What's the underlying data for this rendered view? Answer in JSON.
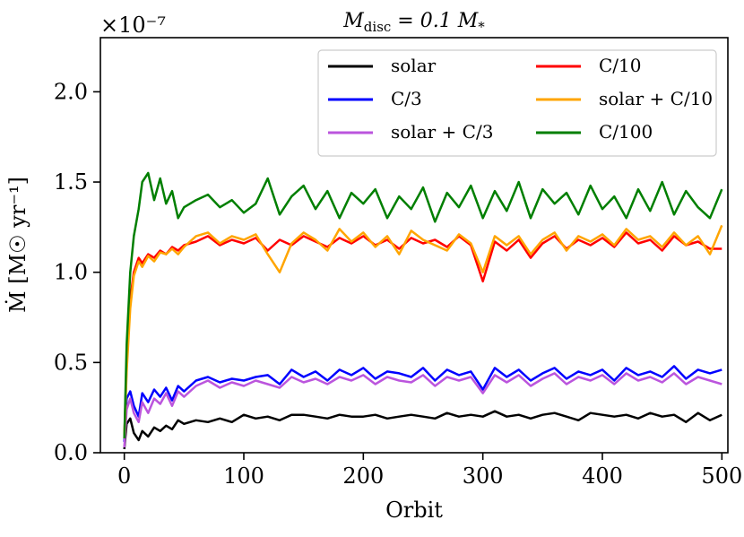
{
  "chart_data": {
    "type": "line",
    "title": "M_disc = 0.1 M_*",
    "title_parts": {
      "main": "M",
      "sub": "disc",
      "eq": " = 0.1 M",
      "star": "*"
    },
    "xlabel": "Orbit",
    "ylabel": "Ṁ [M☉ yr⁻¹]",
    "y_offset_text": "×10⁻⁷",
    "xlim": [
      -20,
      505
    ],
    "ylim": [
      0,
      2.3
    ],
    "x_ticks": [
      0,
      100,
      200,
      300,
      400,
      500
    ],
    "x_tick_labels": [
      "0",
      "100",
      "200",
      "300",
      "400",
      "500"
    ],
    "y_ticks": [
      0.0,
      0.5,
      1.0,
      1.5,
      2.0
    ],
    "y_tick_labels": [
      "0.0",
      "0.5",
      "1.0",
      "1.5",
      "2.0"
    ],
    "legend_position": "upper-right",
    "series": [
      {
        "name": "solar",
        "color": "#000000",
        "x": [
          0,
          2,
          5,
          8,
          12,
          15,
          20,
          25,
          30,
          35,
          40,
          45,
          50,
          60,
          70,
          80,
          90,
          100,
          110,
          120,
          130,
          140,
          150,
          160,
          170,
          180,
          190,
          200,
          210,
          220,
          230,
          240,
          250,
          260,
          270,
          280,
          290,
          300,
          310,
          320,
          330,
          340,
          350,
          360,
          370,
          380,
          390,
          400,
          410,
          420,
          430,
          440,
          450,
          460,
          470,
          480,
          490,
          500
        ],
        "values": [
          0.02,
          0.16,
          0.19,
          0.11,
          0.07,
          0.12,
          0.09,
          0.14,
          0.12,
          0.15,
          0.13,
          0.18,
          0.16,
          0.18,
          0.17,
          0.19,
          0.17,
          0.21,
          0.19,
          0.2,
          0.18,
          0.21,
          0.21,
          0.2,
          0.19,
          0.21,
          0.2,
          0.2,
          0.21,
          0.19,
          0.2,
          0.21,
          0.2,
          0.19,
          0.22,
          0.2,
          0.21,
          0.2,
          0.23,
          0.2,
          0.21,
          0.19,
          0.21,
          0.22,
          0.2,
          0.18,
          0.22,
          0.21,
          0.2,
          0.21,
          0.19,
          0.22,
          0.2,
          0.21,
          0.17,
          0.22,
          0.18,
          0.21
        ]
      },
      {
        "name": "C/3",
        "color": "#0000ff",
        "x": [
          0,
          2,
          5,
          8,
          12,
          15,
          20,
          25,
          30,
          35,
          40,
          45,
          50,
          60,
          70,
          80,
          90,
          100,
          110,
          120,
          130,
          140,
          150,
          160,
          170,
          180,
          190,
          200,
          210,
          220,
          230,
          240,
          250,
          260,
          270,
          280,
          290,
          300,
          310,
          320,
          330,
          340,
          350,
          360,
          370,
          380,
          390,
          400,
          410,
          420,
          430,
          440,
          450,
          460,
          470,
          480,
          490,
          500
        ],
        "values": [
          0.06,
          0.3,
          0.34,
          0.26,
          0.2,
          0.33,
          0.28,
          0.35,
          0.31,
          0.36,
          0.29,
          0.37,
          0.34,
          0.4,
          0.42,
          0.39,
          0.41,
          0.4,
          0.42,
          0.43,
          0.38,
          0.46,
          0.42,
          0.45,
          0.4,
          0.46,
          0.43,
          0.47,
          0.41,
          0.45,
          0.44,
          0.42,
          0.47,
          0.4,
          0.46,
          0.43,
          0.45,
          0.35,
          0.47,
          0.42,
          0.46,
          0.4,
          0.44,
          0.47,
          0.41,
          0.45,
          0.43,
          0.46,
          0.4,
          0.47,
          0.43,
          0.45,
          0.42,
          0.48,
          0.41,
          0.46,
          0.44,
          0.46
        ]
      },
      {
        "name": "solar + C/3",
        "color": "#bb55dd",
        "x": [
          0,
          2,
          5,
          8,
          12,
          15,
          20,
          25,
          30,
          35,
          40,
          45,
          50,
          60,
          70,
          80,
          90,
          100,
          110,
          120,
          130,
          140,
          150,
          160,
          170,
          180,
          190,
          200,
          210,
          220,
          230,
          240,
          250,
          260,
          270,
          280,
          290,
          300,
          310,
          320,
          330,
          340,
          350,
          360,
          370,
          380,
          390,
          400,
          410,
          420,
          430,
          440,
          450,
          460,
          470,
          480,
          490,
          500
        ],
        "values": [
          0.03,
          0.24,
          0.3,
          0.22,
          0.17,
          0.28,
          0.22,
          0.3,
          0.27,
          0.33,
          0.26,
          0.34,
          0.31,
          0.37,
          0.4,
          0.36,
          0.39,
          0.37,
          0.4,
          0.38,
          0.36,
          0.42,
          0.39,
          0.41,
          0.38,
          0.42,
          0.4,
          0.43,
          0.38,
          0.42,
          0.4,
          0.39,
          0.43,
          0.37,
          0.42,
          0.4,
          0.42,
          0.33,
          0.43,
          0.39,
          0.43,
          0.37,
          0.41,
          0.44,
          0.38,
          0.42,
          0.4,
          0.43,
          0.38,
          0.44,
          0.4,
          0.42,
          0.39,
          0.44,
          0.38,
          0.42,
          0.4,
          0.38
        ]
      },
      {
        "name": "C/10",
        "color": "#ff0000",
        "x": [
          0,
          2,
          5,
          8,
          12,
          15,
          20,
          25,
          30,
          35,
          40,
          45,
          50,
          60,
          70,
          80,
          90,
          100,
          110,
          120,
          130,
          140,
          150,
          160,
          170,
          180,
          190,
          200,
          210,
          220,
          230,
          240,
          250,
          260,
          270,
          280,
          290,
          300,
          310,
          320,
          330,
          340,
          350,
          360,
          370,
          380,
          390,
          400,
          410,
          420,
          430,
          440,
          450,
          460,
          470,
          480,
          490,
          500
        ],
        "values": [
          0.08,
          0.5,
          0.85,
          1.0,
          1.08,
          1.05,
          1.1,
          1.08,
          1.12,
          1.1,
          1.14,
          1.12,
          1.15,
          1.17,
          1.2,
          1.15,
          1.18,
          1.16,
          1.19,
          1.12,
          1.18,
          1.15,
          1.2,
          1.17,
          1.14,
          1.19,
          1.16,
          1.2,
          1.15,
          1.18,
          1.13,
          1.19,
          1.16,
          1.18,
          1.14,
          1.2,
          1.15,
          0.95,
          1.17,
          1.12,
          1.18,
          1.08,
          1.16,
          1.2,
          1.13,
          1.18,
          1.15,
          1.19,
          1.14,
          1.22,
          1.16,
          1.18,
          1.12,
          1.2,
          1.15,
          1.17,
          1.13,
          1.13
        ]
      },
      {
        "name": "solar + C/10",
        "color": "#ffa500",
        "x": [
          0,
          2,
          5,
          8,
          12,
          15,
          20,
          25,
          30,
          35,
          40,
          45,
          50,
          60,
          70,
          80,
          90,
          100,
          110,
          120,
          130,
          140,
          150,
          160,
          170,
          180,
          190,
          200,
          210,
          220,
          230,
          240,
          250,
          260,
          270,
          280,
          290,
          300,
          310,
          320,
          330,
          340,
          350,
          360,
          370,
          380,
          390,
          400,
          410,
          420,
          430,
          440,
          450,
          460,
          470,
          480,
          490,
          500
        ],
        "values": [
          0.08,
          0.45,
          0.8,
          0.98,
          1.06,
          1.03,
          1.09,
          1.06,
          1.11,
          1.1,
          1.13,
          1.1,
          1.14,
          1.2,
          1.22,
          1.16,
          1.2,
          1.18,
          1.21,
          1.1,
          1.0,
          1.16,
          1.22,
          1.18,
          1.12,
          1.24,
          1.17,
          1.22,
          1.14,
          1.2,
          1.1,
          1.23,
          1.18,
          1.15,
          1.12,
          1.21,
          1.16,
          1.0,
          1.2,
          1.15,
          1.2,
          1.1,
          1.18,
          1.22,
          1.12,
          1.2,
          1.17,
          1.21,
          1.15,
          1.24,
          1.18,
          1.2,
          1.14,
          1.22,
          1.15,
          1.2,
          1.1,
          1.26
        ]
      },
      {
        "name": "C/100",
        "color": "#007f00",
        "x": [
          0,
          2,
          5,
          8,
          12,
          15,
          20,
          25,
          30,
          35,
          40,
          45,
          50,
          60,
          70,
          80,
          90,
          100,
          110,
          120,
          130,
          140,
          150,
          160,
          170,
          180,
          190,
          200,
          210,
          220,
          230,
          240,
          250,
          260,
          270,
          280,
          290,
          300,
          310,
          320,
          330,
          340,
          350,
          360,
          370,
          380,
          390,
          400,
          410,
          420,
          430,
          440,
          450,
          460,
          470,
          480,
          490,
          500
        ],
        "values": [
          0.08,
          0.6,
          1.0,
          1.2,
          1.35,
          1.5,
          1.55,
          1.4,
          1.52,
          1.38,
          1.45,
          1.3,
          1.36,
          1.4,
          1.43,
          1.36,
          1.4,
          1.33,
          1.38,
          1.52,
          1.32,
          1.42,
          1.48,
          1.35,
          1.45,
          1.3,
          1.44,
          1.38,
          1.46,
          1.3,
          1.42,
          1.35,
          1.47,
          1.28,
          1.44,
          1.36,
          1.48,
          1.3,
          1.45,
          1.34,
          1.5,
          1.3,
          1.46,
          1.38,
          1.44,
          1.32,
          1.48,
          1.35,
          1.42,
          1.3,
          1.46,
          1.34,
          1.5,
          1.32,
          1.45,
          1.36,
          1.3,
          1.46
        ]
      }
    ],
    "legend_columns": [
      [
        "solar",
        "C/3",
        "solar + C/3"
      ],
      [
        "C/10",
        "solar + C/10",
        "C/100"
      ]
    ]
  }
}
